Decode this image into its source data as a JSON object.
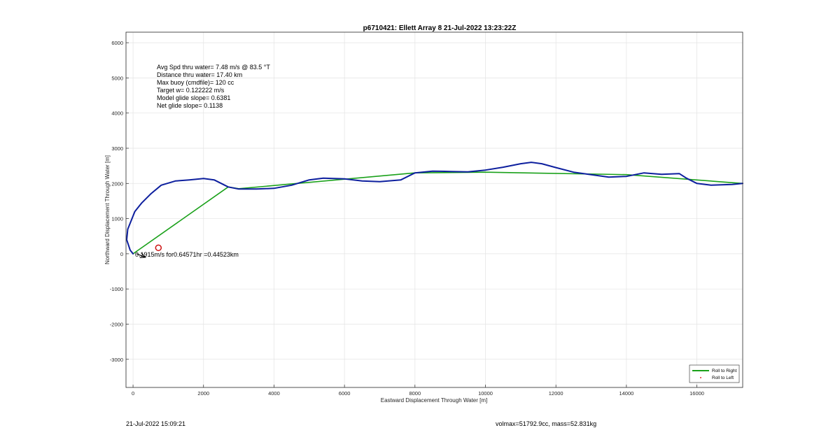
{
  "footer": {
    "timestamp": "21-Jul-2022 15:09:21",
    "vol_mass": "volmax=51792.9cc, mass=52.831kg"
  },
  "chart_data": {
    "type": "line",
    "title": "p6710421: Ellett Array 8 21-Jul-2022 13:23:22Z",
    "xlabel": "Eastward Displacement Through Water [m]",
    "ylabel": "Northward Displacement Through Water [m]",
    "xlim": [
      -200,
      17300
    ],
    "ylim": [
      -3800,
      6300
    ],
    "xticks": [
      0,
      2000,
      4000,
      6000,
      8000,
      10000,
      12000,
      14000,
      16000
    ],
    "yticks": [
      -3000,
      -2000,
      -1000,
      0,
      1000,
      2000,
      3000,
      4000,
      5000,
      6000
    ],
    "grid": true,
    "legend_position": "bottom-right",
    "stats_lines": [
      "Avg Spd thru water=  7.48 m/s @  83.5 °T",
      "Distance thru water= 17.40 km",
      "Max buoy (cmdfile)= 120 cc",
      "Target w= 0.122222 m/s",
      "Model glide slope= 0.6381",
      "Net glide slope= 0.1138"
    ],
    "current_label": "0.1915m/s for0.64571hr =0.44523km",
    "series": [
      {
        "name": "Roll to Right",
        "color": "#1aa11a",
        "x": [
          0,
          2700,
          3000,
          8000,
          10000,
          14000,
          17300
        ],
        "y": [
          0,
          1900,
          1850,
          2300,
          2320,
          2250,
          2000
        ]
      },
      {
        "name": "Roll to Left",
        "color": "#e03030",
        "x": [],
        "y": []
      },
      {
        "name": "",
        "color": "#0d1f9e",
        "x": [
          0,
          -80,
          -180,
          -150,
          50,
          250,
          500,
          800,
          1200,
          1600,
          2000,
          2300,
          2700,
          3000,
          3500,
          4000,
          4500,
          5000,
          5400,
          6000,
          6500,
          7000,
          7600,
          8000,
          8500,
          9000,
          9500,
          10000,
          10500,
          11000,
          11300,
          11600,
          12000,
          12500,
          13000,
          13500,
          14000,
          14500,
          15000,
          15500,
          15700,
          16000,
          16400,
          17000,
          17300
        ],
        "y": [
          0,
          100,
          400,
          700,
          1200,
          1450,
          1700,
          1950,
          2070,
          2100,
          2140,
          2100,
          1900,
          1840,
          1840,
          1860,
          1950,
          2100,
          2150,
          2130,
          2070,
          2050,
          2100,
          2300,
          2350,
          2340,
          2330,
          2380,
          2460,
          2560,
          2600,
          2560,
          2450,
          2320,
          2250,
          2180,
          2200,
          2300,
          2260,
          2280,
          2150,
          2000,
          1950,
          1970,
          2000
        ]
      }
    ],
    "current_arrow": {
      "from": [
        100,
        0
      ],
      "to": [
        350,
        -100
      ],
      "color": "#000000"
    },
    "target_marker": {
      "x": 720,
      "y": 170,
      "color": "#cc1111"
    }
  }
}
